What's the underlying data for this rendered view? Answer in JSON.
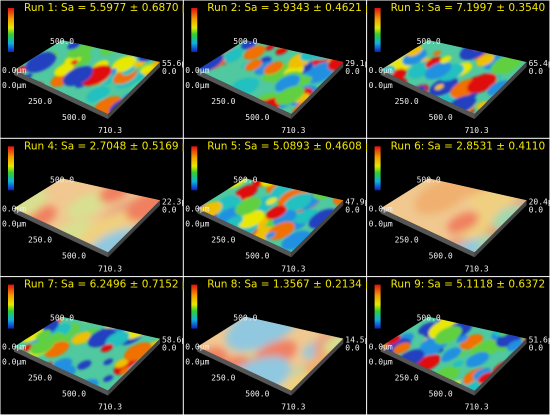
{
  "panels": [
    {
      "title": "Run 1: Sa = 5.5977 ± 0.6870 µm",
      "back_y": "500.0",
      "z_origin": "0.0µm",
      "origin": "0.0µm",
      "y_mid": "250.0",
      "x_mid": "500.0",
      "x_end": "710.3",
      "z_max": "55.6µm",
      "z_min": "0.0"
    },
    {
      "title": "Run 2: Sa = 3.9343 ± 0.4621 µm",
      "back_y": "500.0",
      "z_origin": "0.0µm",
      "origin": "0.0µm",
      "y_mid": "250.0",
      "x_mid": "500.0",
      "x_end": "710.3",
      "z_max": "29.1µm",
      "z_min": "0.0"
    },
    {
      "title": "Run 3: Sa = 7.1997 ± 0.3540 µm",
      "back_y": "500.0",
      "z_origin": "0.0µm",
      "origin": "0.0µm",
      "y_mid": "250.0",
      "x_mid": "500.0",
      "x_end": "710.3",
      "z_max": "65.4µm",
      "z_min": "0.0"
    },
    {
      "title": "Run 4: Sa = 2.7048 ± 0.5169 µm",
      "back_y": "500.0",
      "z_origin": "0.0µm",
      "origin": "0.0µm",
      "y_mid": "250.0",
      "x_mid": "500.0",
      "x_end": "710.3",
      "z_max": "22.3µm",
      "z_min": "0.0"
    },
    {
      "title": "Run 5: Sa = 5.0893 ± 0.4608 µm",
      "back_y": "500.0",
      "z_origin": "0.0µm",
      "origin": "0.0µm",
      "y_mid": "250.0",
      "x_mid": "500.0",
      "x_end": "710.3",
      "z_max": "47.9µm",
      "z_min": "0.0"
    },
    {
      "title": "Run 6: Sa = 2.8531 ± 0.4110 µm",
      "back_y": "500.0",
      "z_origin": "0.0µm",
      "origin": "0.0µm",
      "y_mid": "250.0",
      "x_mid": "500.0",
      "x_end": "710.3",
      "z_max": "20.4µm",
      "z_min": "0.0"
    },
    {
      "title": "Run 7: Sa = 6.2496 ± 0.7152 µm",
      "back_y": "500.0",
      "z_origin": "0.0µm",
      "origin": "0.0µm",
      "y_mid": "250.0",
      "x_mid": "500.0",
      "x_end": "710.3",
      "z_max": "58.6µm",
      "z_min": "0.0"
    },
    {
      "title": "Run 8: Sa = 1.3567 ± 0.2134 µm",
      "back_y": "500.0",
      "z_origin": "0.0µm",
      "origin": "0.0µm",
      "y_mid": "250.0",
      "x_mid": "500.0",
      "x_end": "710.3",
      "z_max": "14.5µm",
      "z_min": "0.0"
    },
    {
      "title": "Run 9: Sa = 5.1118 ± 0.6372 µm",
      "back_y": "500.0",
      "z_origin": "0.0µm",
      "origin": "0.0µm",
      "y_mid": "250.0",
      "x_mid": "500.0",
      "x_end": "710.3",
      "z_max": "51.6µm",
      "z_min": "0.0"
    }
  ]
}
